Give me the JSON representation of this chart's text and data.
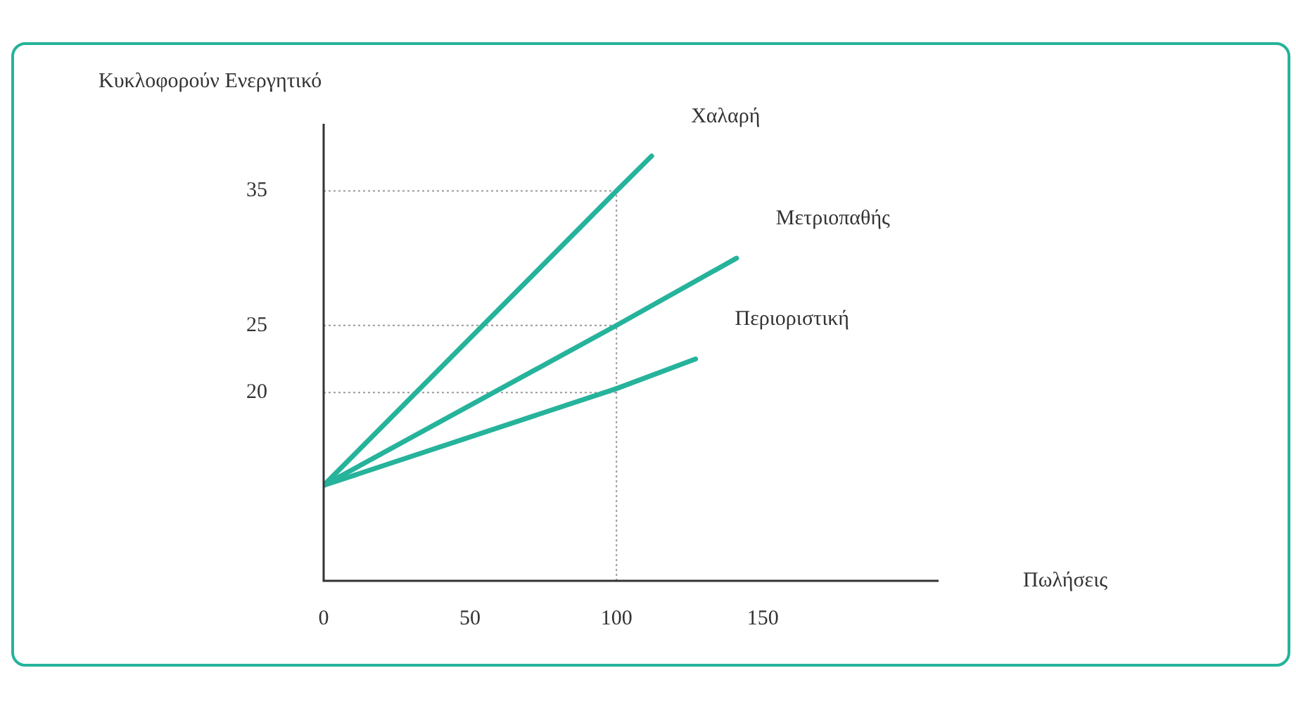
{
  "chart_data": {
    "type": "line",
    "xlabel": "Πωλήσεις",
    "ylabel": "Κυκλοφορούν Ενεργητικό",
    "xlim": [
      0,
      210
    ],
    "xticks": [
      0,
      50,
      100,
      150
    ],
    "ylim": [
      6,
      40
    ],
    "yticks": [
      20,
      25,
      35
    ],
    "grid": false,
    "legend": false,
    "marker": "none",
    "line_style": "solid",
    "series": [
      {
        "name": "Χαλαρή",
        "color": "#26b39b",
        "x": [
          0,
          100,
          112
        ],
        "values": [
          13.1,
          35,
          37.6
        ]
      },
      {
        "name": "Μετριοπαθής",
        "color": "#26b39b",
        "x": [
          0,
          100,
          141
        ],
        "values": [
          13.1,
          25,
          30
        ]
      },
      {
        "name": "Περιοριστική",
        "color": "#26b39b",
        "x": [
          0,
          100,
          127
        ],
        "values": [
          13.1,
          20.3,
          22.5
        ]
      }
    ],
    "ref_lines": [
      {
        "axis": "y",
        "value": 35,
        "line_style": "dotted",
        "color": "#9a9a9a"
      },
      {
        "axis": "y",
        "value": 25,
        "line_style": "dotted",
        "color": "#9a9a9a"
      },
      {
        "axis": "y",
        "value": 20,
        "line_style": "dotted",
        "color": "#9a9a9a"
      },
      {
        "axis": "x",
        "value": 100,
        "line_style": "dotted",
        "color": "#9a9a9a"
      }
    ]
  }
}
